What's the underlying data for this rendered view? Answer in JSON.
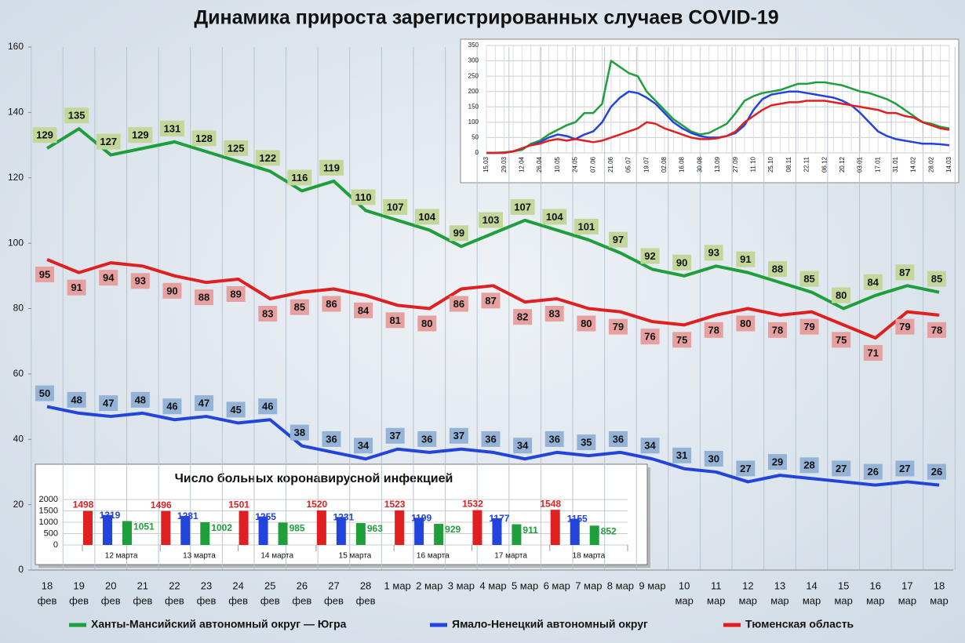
{
  "chart_data": [
    {
      "type": "line",
      "title": "Динамика прироста зарегистрированных случаев COVID-19",
      "categories": [
        [
          "18",
          "фев"
        ],
        [
          "19",
          "фев"
        ],
        [
          "20",
          "фев"
        ],
        [
          "21",
          "фев"
        ],
        [
          "22",
          "фев"
        ],
        [
          "23",
          "фев"
        ],
        [
          "24",
          "фев"
        ],
        [
          "25",
          "фев"
        ],
        [
          "26",
          "фев"
        ],
        [
          "27",
          "фев"
        ],
        [
          "28",
          "фев"
        ],
        [
          "1 мар"
        ],
        [
          "2 мар"
        ],
        [
          "3 мар"
        ],
        [
          "4 мар"
        ],
        [
          "5 мар"
        ],
        [
          "6 мар"
        ],
        [
          "7 мар"
        ],
        [
          "8 мар"
        ],
        [
          "9 мар"
        ],
        [
          "10",
          "мар"
        ],
        [
          "11",
          "мар"
        ],
        [
          "12",
          "мар"
        ],
        [
          "13",
          "мар"
        ],
        [
          "14",
          "мар"
        ],
        [
          "15",
          "мар"
        ],
        [
          "16",
          "мар"
        ],
        [
          "17",
          "мар"
        ],
        [
          "18",
          "мар"
        ]
      ],
      "series": [
        {
          "name": "Ханты-Мансийский автономный округ — Югра",
          "color": "#1f9e3c",
          "label_color": "#c4d79b",
          "values": [
            129,
            135,
            127,
            129,
            131,
            128,
            125,
            122,
            116,
            119,
            110,
            107,
            104,
            99,
            103,
            107,
            104,
            101,
            97,
            92,
            90,
            93,
            91,
            88,
            85,
            80,
            84,
            87,
            85
          ]
        },
        {
          "name": "Ямало-Ненецкий автономный округ",
          "color": "#2244dd",
          "label_color": "#95b3d7",
          "values": [
            50,
            48,
            47,
            48,
            46,
            47,
            45,
            46,
            38,
            36,
            34,
            37,
            36,
            37,
            36,
            34,
            36,
            35,
            36,
            34,
            31,
            30,
            27,
            29,
            28,
            27,
            26,
            27,
            26
          ]
        },
        {
          "name": "Тюменская область",
          "color": "#e02020",
          "label_color": "#e6a0a0",
          "values": [
            95,
            91,
            94,
            93,
            90,
            88,
            89,
            83,
            85,
            86,
            84,
            81,
            80,
            86,
            87,
            82,
            83,
            80,
            79,
            76,
            75,
            78,
            80,
            78,
            79,
            75,
            71,
            79,
            78
          ]
        }
      ],
      "ylim": [
        0,
        160
      ],
      "yticks": [
        0,
        20,
        40,
        60,
        80,
        100,
        120,
        140,
        160
      ],
      "grid": true
    },
    {
      "type": "line",
      "categories": [
        "15.03",
        null,
        "29.03",
        null,
        "12.04",
        null,
        "26.04",
        null,
        "10.05",
        null,
        "24.05",
        null,
        "07.06",
        null,
        "21.06",
        null,
        "05.07",
        null,
        "19.07",
        null,
        "02.08",
        null,
        "16.08",
        null,
        "30.08",
        null,
        "13.09",
        null,
        "27.09",
        null,
        "11.10",
        null,
        "25.10",
        null,
        "08.11",
        null,
        "22.11",
        null,
        "06.12",
        null,
        "20.12",
        null,
        "03.01",
        null,
        "17.01",
        null,
        "31.01",
        null,
        "14.02",
        null,
        "28.02",
        null,
        "14.03"
      ],
      "series": [
        {
          "color": "#1f9e3c",
          "values": [
            0,
            0,
            2,
            5,
            10,
            30,
            40,
            60,
            75,
            90,
            100,
            130,
            130,
            160,
            300,
            280,
            260,
            250,
            200,
            170,
            140,
            110,
            90,
            70,
            60,
            65,
            80,
            95,
            130,
            170,
            185,
            195,
            200,
            205,
            215,
            225,
            225,
            230,
            230,
            225,
            220,
            210,
            200,
            195,
            185,
            175,
            160,
            140,
            120,
            100,
            95,
            85,
            80
          ]
        },
        {
          "color": "#2244dd",
          "values": [
            0,
            0,
            0,
            5,
            15,
            25,
            35,
            50,
            60,
            55,
            45,
            60,
            70,
            100,
            150,
            180,
            200,
            195,
            180,
            160,
            130,
            100,
            80,
            65,
            55,
            50,
            50,
            55,
            65,
            90,
            140,
            175,
            190,
            195,
            200,
            200,
            195,
            190,
            185,
            180,
            170,
            155,
            130,
            100,
            70,
            55,
            45,
            40,
            35,
            30,
            30,
            28,
            25
          ]
        },
        {
          "color": "#e02020",
          "values": [
            0,
            0,
            0,
            5,
            15,
            25,
            30,
            40,
            45,
            40,
            45,
            40,
            35,
            40,
            50,
            60,
            70,
            80,
            100,
            95,
            80,
            70,
            60,
            50,
            45,
            45,
            48,
            55,
            70,
            100,
            120,
            140,
            155,
            160,
            165,
            165,
            170,
            170,
            170,
            165,
            160,
            155,
            150,
            145,
            140,
            130,
            130,
            120,
            115,
            100,
            90,
            80,
            75
          ]
        }
      ],
      "ylim": [
        0,
        350
      ],
      "yticks": [
        0,
        50,
        100,
        150,
        200,
        250,
        300,
        350
      ],
      "grid": true
    },
    {
      "type": "bar",
      "title": "Число больных коронавирусной инфекцией",
      "categories": [
        "12 марта",
        "13 марта",
        "14 марта",
        "15 марта",
        "16 марта",
        "17 марта",
        "18 марта"
      ],
      "series": [
        {
          "color": "#e02020",
          "values": [
            1498,
            1496,
            1501,
            1520,
            1523,
            1532,
            1548
          ]
        },
        {
          "color": "#2244dd",
          "values": [
            1319,
            1281,
            1255,
            1231,
            1199,
            1177,
            1155
          ]
        },
        {
          "color": "#1f9e3c",
          "values": [
            1051,
            1002,
            985,
            963,
            929,
            911,
            852
          ]
        }
      ],
      "ylim": [
        0,
        2000
      ],
      "yticks": [
        0,
        500,
        1000,
        1500,
        2000
      ],
      "grid": true
    }
  ]
}
